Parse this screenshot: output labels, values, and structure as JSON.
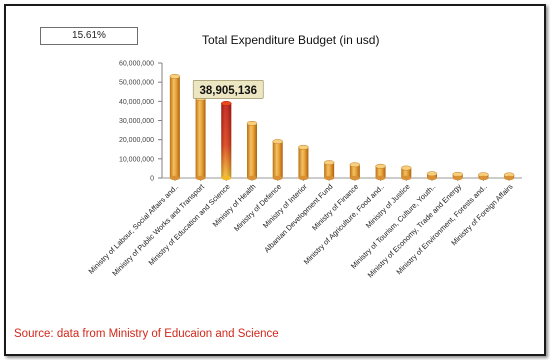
{
  "badge": "15.61%",
  "source": "Source: data from Ministry of Educaion and Science",
  "colors": {
    "bar": "#e7a43c",
    "highlight": "#d8231a",
    "callout_bg": "#ece6c2"
  },
  "chart_data": {
    "type": "bar",
    "title": "Total Expenditure Budget (in usd)",
    "xlabel": "",
    "ylabel": "",
    "ylim": [
      0,
      60000000
    ],
    "yticks": [
      0,
      10000000,
      20000000,
      30000000,
      40000000,
      50000000,
      60000000
    ],
    "ytick_labels": [
      "0",
      "10,000,000",
      "20,000,000",
      "30,000,000",
      "40,000,000",
      "50,000,000",
      "60,000,000"
    ],
    "grid": false,
    "highlight_index": 2,
    "callout": "38,905,136",
    "categories": [
      "Ministry of Labour, Social Affairs and..",
      "Ministry of Public Works and Transport",
      "Ministry of Education and Science",
      "Ministry of Health",
      "Ministry of Defence",
      "Ministry of Interior",
      "Albanian Development Fund",
      "Ministry of Finance",
      "Ministry of Agriculture, Food and..",
      "Ministry of Justice",
      "Ministry of Tourism, Culture, Youth..",
      "Ministry of Economy, Trade and Energy",
      "Ministry of Environment, Forests and..",
      "Ministry of Foreign Affairs"
    ],
    "values": [
      53000000,
      41500000,
      38905136,
      28500000,
      19000000,
      16000000,
      8000000,
      6900000,
      6100000,
      5200000,
      2200000,
      1900000,
      1700000,
      1600000
    ]
  }
}
